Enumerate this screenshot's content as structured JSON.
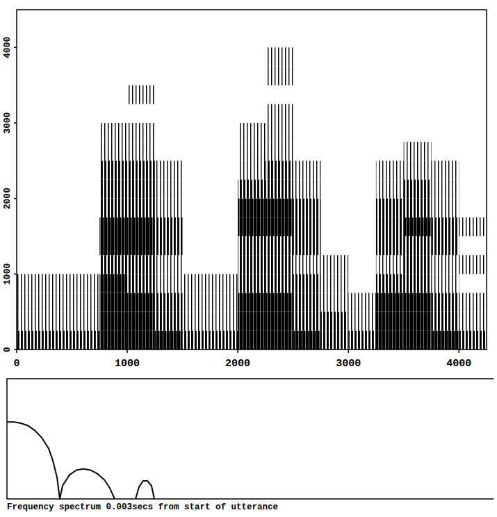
{
  "chart_data": [
    {
      "type": "heatmap",
      "x_bins": [
        0,
        250,
        500,
        750,
        1000,
        1250,
        1500,
        1750,
        2000,
        2250,
        2500,
        2750,
        3000,
        3250,
        3500,
        3750,
        4000,
        4250
      ],
      "y_bins": [
        0,
        250,
        500,
        750,
        1000,
        1250,
        1500,
        1750,
        2000,
        2250,
        2500,
        2750,
        3000,
        3250,
        3500,
        3750,
        4000,
        4250,
        4500
      ],
      "cells": [
        [
          2,
          2,
          2,
          3,
          3,
          3,
          2,
          2,
          3,
          3,
          3,
          2,
          2,
          3,
          3,
          3,
          2
        ],
        [
          1,
          1,
          1,
          3,
          3,
          2,
          1,
          1,
          3,
          3,
          2,
          2,
          1,
          3,
          3,
          2,
          1
        ],
        [
          1,
          1,
          1,
          3,
          3,
          2,
          1,
          1,
          3,
          3,
          2,
          1,
          1,
          3,
          3,
          2,
          1
        ],
        [
          1,
          1,
          1,
          3,
          2,
          1,
          1,
          1,
          2,
          2,
          2,
          1,
          0,
          2,
          2,
          1,
          0
        ],
        [
          0,
          0,
          0,
          2,
          2,
          1,
          0,
          0,
          2,
          2,
          1,
          1,
          0,
          1,
          2,
          1,
          1
        ],
        [
          0,
          0,
          0,
          3,
          3,
          2,
          0,
          0,
          2,
          2,
          2,
          0,
          0,
          2,
          2,
          2,
          0
        ],
        [
          0,
          0,
          0,
          3,
          3,
          2,
          0,
          0,
          3,
          3,
          2,
          0,
          0,
          2,
          3,
          2,
          1
        ],
        [
          0,
          0,
          0,
          2,
          2,
          1,
          0,
          0,
          3,
          3,
          2,
          0,
          0,
          2,
          2,
          1,
          0
        ],
        [
          0,
          0,
          0,
          2,
          2,
          1,
          0,
          0,
          2,
          2,
          1,
          0,
          0,
          1,
          2,
          1,
          0
        ],
        [
          0,
          0,
          0,
          2,
          2,
          1,
          0,
          0,
          1,
          2,
          1,
          0,
          0,
          1,
          1,
          1,
          0
        ],
        [
          0,
          0,
          0,
          1,
          1,
          0,
          0,
          0,
          1,
          1,
          0,
          0,
          0,
          0,
          1,
          0,
          0
        ],
        [
          0,
          0,
          0,
          1,
          1,
          0,
          0,
          0,
          1,
          1,
          0,
          0,
          0,
          0,
          0,
          0,
          0
        ],
        [
          0,
          0,
          0,
          0,
          0,
          0,
          0,
          0,
          0,
          1,
          0,
          0,
          0,
          0,
          0,
          0,
          0
        ],
        [
          0,
          0,
          0,
          0,
          1,
          0,
          0,
          0,
          0,
          0,
          0,
          0,
          0,
          0,
          0,
          0,
          0
        ],
        [
          0,
          0,
          0,
          0,
          0,
          0,
          0,
          0,
          0,
          1,
          0,
          0,
          0,
          0,
          0,
          0,
          0
        ],
        [
          0,
          0,
          0,
          0,
          0,
          0,
          0,
          0,
          0,
          1,
          0,
          0,
          0,
          0,
          0,
          0,
          0
        ],
        [
          0,
          0,
          0,
          0,
          0,
          0,
          0,
          0,
          0,
          0,
          0,
          0,
          0,
          0,
          0,
          0,
          0
        ],
        [
          0,
          0,
          0,
          0,
          0,
          0,
          0,
          0,
          0,
          0,
          0,
          0,
          0,
          0,
          0,
          0,
          0
        ]
      ],
      "xlim": [
        0,
        4250
      ],
      "ylim": [
        0,
        4500
      ],
      "xticks": [
        0,
        1000,
        2000,
        3000,
        4000
      ],
      "yticks": [
        0,
        1000,
        2000,
        3000,
        4000
      ],
      "color": "#000000"
    },
    {
      "type": "line",
      "title": "Frequency spectrum 0.003secs from start of utterance",
      "x": [
        0,
        10,
        20,
        30,
        40,
        50,
        60,
        66,
        72,
        76,
        80,
        90,
        100,
        110,
        120,
        130,
        140,
        148,
        155,
        170,
        185,
        190,
        196,
        202,
        208,
        212
      ],
      "values": [
        64,
        64,
        63,
        61,
        57,
        51,
        42,
        32,
        18,
        0,
        11,
        20,
        24,
        25,
        24,
        21,
        16,
        9,
        0,
        null,
        0,
        10,
        15,
        15,
        11,
        0
      ],
      "xlim": [
        0,
        700
      ],
      "ylim": [
        0,
        100
      ],
      "tick_labels": false,
      "color": "#000000"
    }
  ]
}
